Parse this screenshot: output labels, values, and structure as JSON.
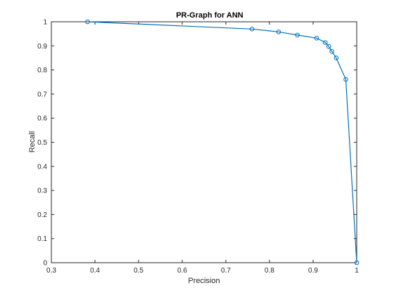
{
  "chart_data": {
    "type": "line",
    "title": "PR-Graph for ANN",
    "xlabel": "Precision",
    "ylabel": "Recall",
    "xlim": [
      0.3,
      1
    ],
    "ylim": [
      0,
      1
    ],
    "xticks": [
      "0.3",
      "0.4",
      "0.5",
      "0.6",
      "0.7",
      "0.8",
      "0.9",
      "1"
    ],
    "yticks": [
      "0",
      "0.1",
      "0.2",
      "0.3",
      "0.4",
      "0.5",
      "0.6",
      "0.7",
      "0.8",
      "0.9",
      "1"
    ],
    "grid": false,
    "marker": "circle",
    "color": "#0072BD",
    "series": [
      {
        "x": [
          0.383,
          0.76,
          0.821,
          0.864,
          0.908,
          0.928,
          0.936,
          0.943,
          0.953,
          0.975,
          1.0
        ],
        "y": [
          1.0,
          0.97,
          0.958,
          0.945,
          0.932,
          0.914,
          0.897,
          0.877,
          0.85,
          0.761,
          0.0
        ]
      }
    ]
  }
}
